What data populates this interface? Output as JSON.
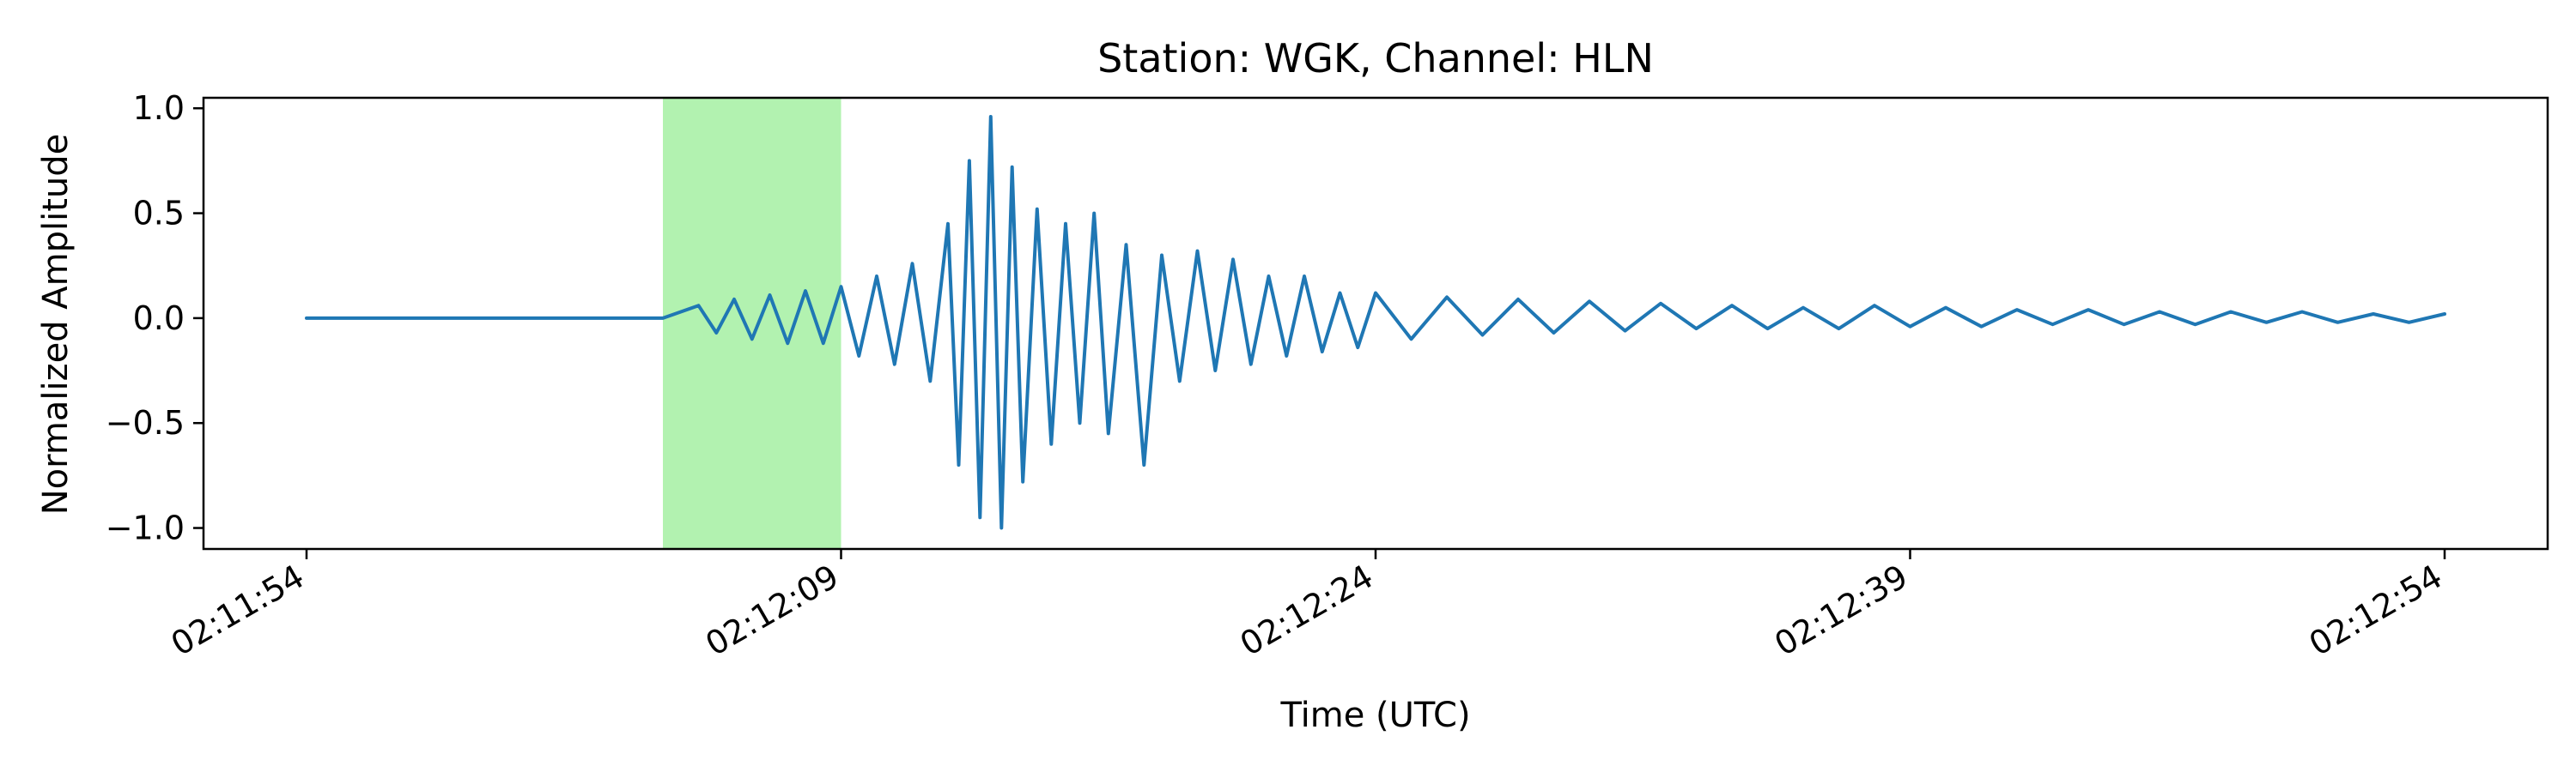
{
  "chart_data": {
    "type": "line",
    "title": "Station: WGK, Channel: HLN",
    "xlabel": "Time (UTC)",
    "ylabel": "Normalized Amplitude",
    "xlim": [
      "02:11:54",
      "02:12:54"
    ],
    "ylim": [
      -1.1,
      1.05
    ],
    "x_ticks": [
      "02:11:54",
      "02:12:09",
      "02:12:24",
      "02:12:39",
      "02:12:54"
    ],
    "y_ticks": [
      {
        "value": 1.0,
        "label": "1.0"
      },
      {
        "value": 0.5,
        "label": "0.5"
      },
      {
        "value": 0.0,
        "label": "0.0"
      },
      {
        "value": -0.5,
        "label": "−0.5"
      },
      {
        "value": -1.0,
        "label": "−1.0"
      }
    ],
    "grid": false,
    "highlight_window": {
      "start": "02:12:04",
      "end": "02:12:09",
      "color": "#b2f2b0"
    },
    "series": [
      {
        "color": "#1f77b4",
        "points": [
          [
            "02:11:54",
            0.0
          ],
          [
            "02:11:58",
            0.0
          ],
          [
            "02:12:02",
            0.0
          ],
          [
            "02:12:04",
            0.0
          ],
          [
            "02:12:05",
            0.06
          ],
          [
            "02:12:05.5",
            -0.07
          ],
          [
            "02:12:06",
            0.09
          ],
          [
            "02:12:06.5",
            -0.1
          ],
          [
            "02:12:07",
            0.11
          ],
          [
            "02:12:07.5",
            -0.12
          ],
          [
            "02:12:08",
            0.13
          ],
          [
            "02:12:08.5",
            -0.12
          ],
          [
            "02:12:09",
            0.15
          ],
          [
            "02:12:09.5",
            -0.18
          ],
          [
            "02:12:10",
            0.2
          ],
          [
            "02:12:10.5",
            -0.22
          ],
          [
            "02:12:11",
            0.26
          ],
          [
            "02:12:11.5",
            -0.3
          ],
          [
            "02:12:12",
            0.45
          ],
          [
            "02:12:12.3",
            -0.7
          ],
          [
            "02:12:12.6",
            0.75
          ],
          [
            "02:12:12.9",
            -0.95
          ],
          [
            "02:12:13.2",
            0.96
          ],
          [
            "02:12:13.5",
            -1.0
          ],
          [
            "02:12:13.8",
            0.72
          ],
          [
            "02:12:14.1",
            -0.78
          ],
          [
            "02:12:14.5",
            0.52
          ],
          [
            "02:12:14.9",
            -0.6
          ],
          [
            "02:12:15.3",
            0.45
          ],
          [
            "02:12:15.7",
            -0.5
          ],
          [
            "02:12:16.1",
            0.5
          ],
          [
            "02:12:16.5",
            -0.55
          ],
          [
            "02:12:17",
            0.35
          ],
          [
            "02:12:17.5",
            -0.7
          ],
          [
            "02:12:18",
            0.3
          ],
          [
            "02:12:18.5",
            -0.3
          ],
          [
            "02:12:19",
            0.32
          ],
          [
            "02:12:19.5",
            -0.25
          ],
          [
            "02:12:20",
            0.28
          ],
          [
            "02:12:20.5",
            -0.22
          ],
          [
            "02:12:21",
            0.2
          ],
          [
            "02:12:21.5",
            -0.18
          ],
          [
            "02:12:22",
            0.2
          ],
          [
            "02:12:22.5",
            -0.16
          ],
          [
            "02:12:23",
            0.12
          ],
          [
            "02:12:23.5",
            -0.14
          ],
          [
            "02:12:24",
            0.12
          ],
          [
            "02:12:25",
            -0.1
          ],
          [
            "02:12:26",
            0.1
          ],
          [
            "02:12:27",
            -0.08
          ],
          [
            "02:12:28",
            0.09
          ],
          [
            "02:12:29",
            -0.07
          ],
          [
            "02:12:30",
            0.08
          ],
          [
            "02:12:31",
            -0.06
          ],
          [
            "02:12:32",
            0.07
          ],
          [
            "02:12:33",
            -0.05
          ],
          [
            "02:12:34",
            0.06
          ],
          [
            "02:12:35",
            -0.05
          ],
          [
            "02:12:36",
            0.05
          ],
          [
            "02:12:37",
            -0.05
          ],
          [
            "02:12:38",
            0.06
          ],
          [
            "02:12:39",
            -0.04
          ],
          [
            "02:12:40",
            0.05
          ],
          [
            "02:12:41",
            -0.04
          ],
          [
            "02:12:42",
            0.04
          ],
          [
            "02:12:43",
            -0.03
          ],
          [
            "02:12:44",
            0.04
          ],
          [
            "02:12:45",
            -0.03
          ],
          [
            "02:12:46",
            0.03
          ],
          [
            "02:12:47",
            -0.03
          ],
          [
            "02:12:48",
            0.03
          ],
          [
            "02:12:49",
            -0.02
          ],
          [
            "02:12:50",
            0.03
          ],
          [
            "02:12:51",
            -0.02
          ],
          [
            "02:12:52",
            0.02
          ],
          [
            "02:12:53",
            -0.02
          ],
          [
            "02:12:54",
            0.02
          ]
        ]
      }
    ]
  }
}
